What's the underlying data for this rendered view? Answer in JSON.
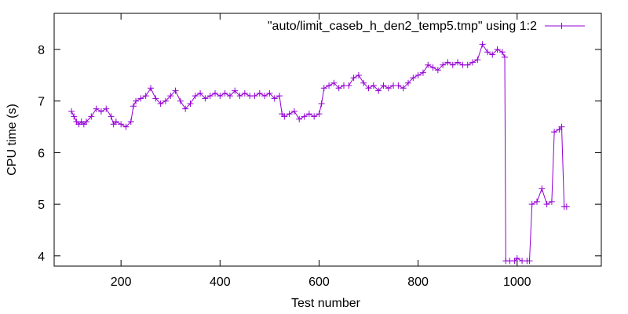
{
  "chart_data": {
    "type": "line",
    "xlabel": "Test number",
    "ylabel": "CPU time (s)",
    "xlim": [
      65,
      1170
    ],
    "ylim": [
      3.8,
      8.7
    ],
    "xticks": [
      "200",
      "400",
      "600",
      "800",
      "1000"
    ],
    "yticks": [
      "4",
      "5",
      "6",
      "7",
      "8"
    ],
    "grid": false,
    "legend_position": "top-right",
    "series_color": "#9400d3",
    "marker": "plus",
    "series": [
      {
        "name": "\"auto/limit_caseb_h_den2_temp5.tmp\" using 1:2",
        "points": [
          [
            100,
            6.8
          ],
          [
            105,
            6.7
          ],
          [
            110,
            6.6
          ],
          [
            115,
            6.55
          ],
          [
            120,
            6.6
          ],
          [
            125,
            6.55
          ],
          [
            130,
            6.6
          ],
          [
            140,
            6.7
          ],
          [
            150,
            6.85
          ],
          [
            160,
            6.8
          ],
          [
            170,
            6.85
          ],
          [
            180,
            6.7
          ],
          [
            185,
            6.55
          ],
          [
            190,
            6.6
          ],
          [
            200,
            6.55
          ],
          [
            210,
            6.5
          ],
          [
            220,
            6.6
          ],
          [
            225,
            6.9
          ],
          [
            230,
            7.0
          ],
          [
            240,
            7.05
          ],
          [
            250,
            7.1
          ],
          [
            260,
            7.25
          ],
          [
            270,
            7.05
          ],
          [
            280,
            6.95
          ],
          [
            290,
            7.0
          ],
          [
            300,
            7.1
          ],
          [
            310,
            7.2
          ],
          [
            320,
            7.0
          ],
          [
            330,
            6.85
          ],
          [
            340,
            6.95
          ],
          [
            350,
            7.1
          ],
          [
            360,
            7.15
          ],
          [
            370,
            7.05
          ],
          [
            380,
            7.1
          ],
          [
            390,
            7.15
          ],
          [
            400,
            7.1
          ],
          [
            410,
            7.15
          ],
          [
            420,
            7.1
          ],
          [
            430,
            7.2
          ],
          [
            440,
            7.1
          ],
          [
            450,
            7.15
          ],
          [
            460,
            7.1
          ],
          [
            470,
            7.1
          ],
          [
            480,
            7.15
          ],
          [
            490,
            7.1
          ],
          [
            500,
            7.15
          ],
          [
            510,
            7.05
          ],
          [
            520,
            7.1
          ],
          [
            525,
            6.75
          ],
          [
            530,
            6.7
          ],
          [
            540,
            6.75
          ],
          [
            550,
            6.8
          ],
          [
            560,
            6.65
          ],
          [
            570,
            6.7
          ],
          [
            580,
            6.75
          ],
          [
            590,
            6.7
          ],
          [
            600,
            6.75
          ],
          [
            605,
            6.95
          ],
          [
            610,
            7.25
          ],
          [
            620,
            7.3
          ],
          [
            630,
            7.35
          ],
          [
            640,
            7.25
          ],
          [
            650,
            7.3
          ],
          [
            660,
            7.3
          ],
          [
            670,
            7.45
          ],
          [
            680,
            7.5
          ],
          [
            690,
            7.35
          ],
          [
            700,
            7.25
          ],
          [
            710,
            7.3
          ],
          [
            720,
            7.2
          ],
          [
            730,
            7.3
          ],
          [
            740,
            7.25
          ],
          [
            750,
            7.3
          ],
          [
            760,
            7.3
          ],
          [
            770,
            7.25
          ],
          [
            780,
            7.35
          ],
          [
            790,
            7.45
          ],
          [
            800,
            7.5
          ],
          [
            810,
            7.55
          ],
          [
            820,
            7.7
          ],
          [
            830,
            7.65
          ],
          [
            840,
            7.6
          ],
          [
            850,
            7.7
          ],
          [
            860,
            7.75
          ],
          [
            870,
            7.7
          ],
          [
            880,
            7.75
          ],
          [
            890,
            7.7
          ],
          [
            900,
            7.7
          ],
          [
            910,
            7.75
          ],
          [
            920,
            7.8
          ],
          [
            930,
            8.1
          ],
          [
            940,
            7.95
          ],
          [
            950,
            7.9
          ],
          [
            960,
            8.0
          ],
          [
            970,
            7.95
          ],
          [
            975,
            7.85
          ],
          [
            977,
            3.9
          ],
          [
            985,
            3.9
          ],
          [
            995,
            3.9
          ],
          [
            1000,
            3.95
          ],
          [
            1010,
            3.9
          ],
          [
            1020,
            3.9
          ],
          [
            1025,
            3.9
          ],
          [
            1030,
            5.0
          ],
          [
            1040,
            5.05
          ],
          [
            1050,
            5.3
          ],
          [
            1060,
            5.0
          ],
          [
            1070,
            5.05
          ],
          [
            1075,
            6.4
          ],
          [
            1085,
            6.45
          ],
          [
            1090,
            6.5
          ],
          [
            1095,
            4.95
          ],
          [
            1100,
            4.95
          ]
        ]
      }
    ]
  }
}
